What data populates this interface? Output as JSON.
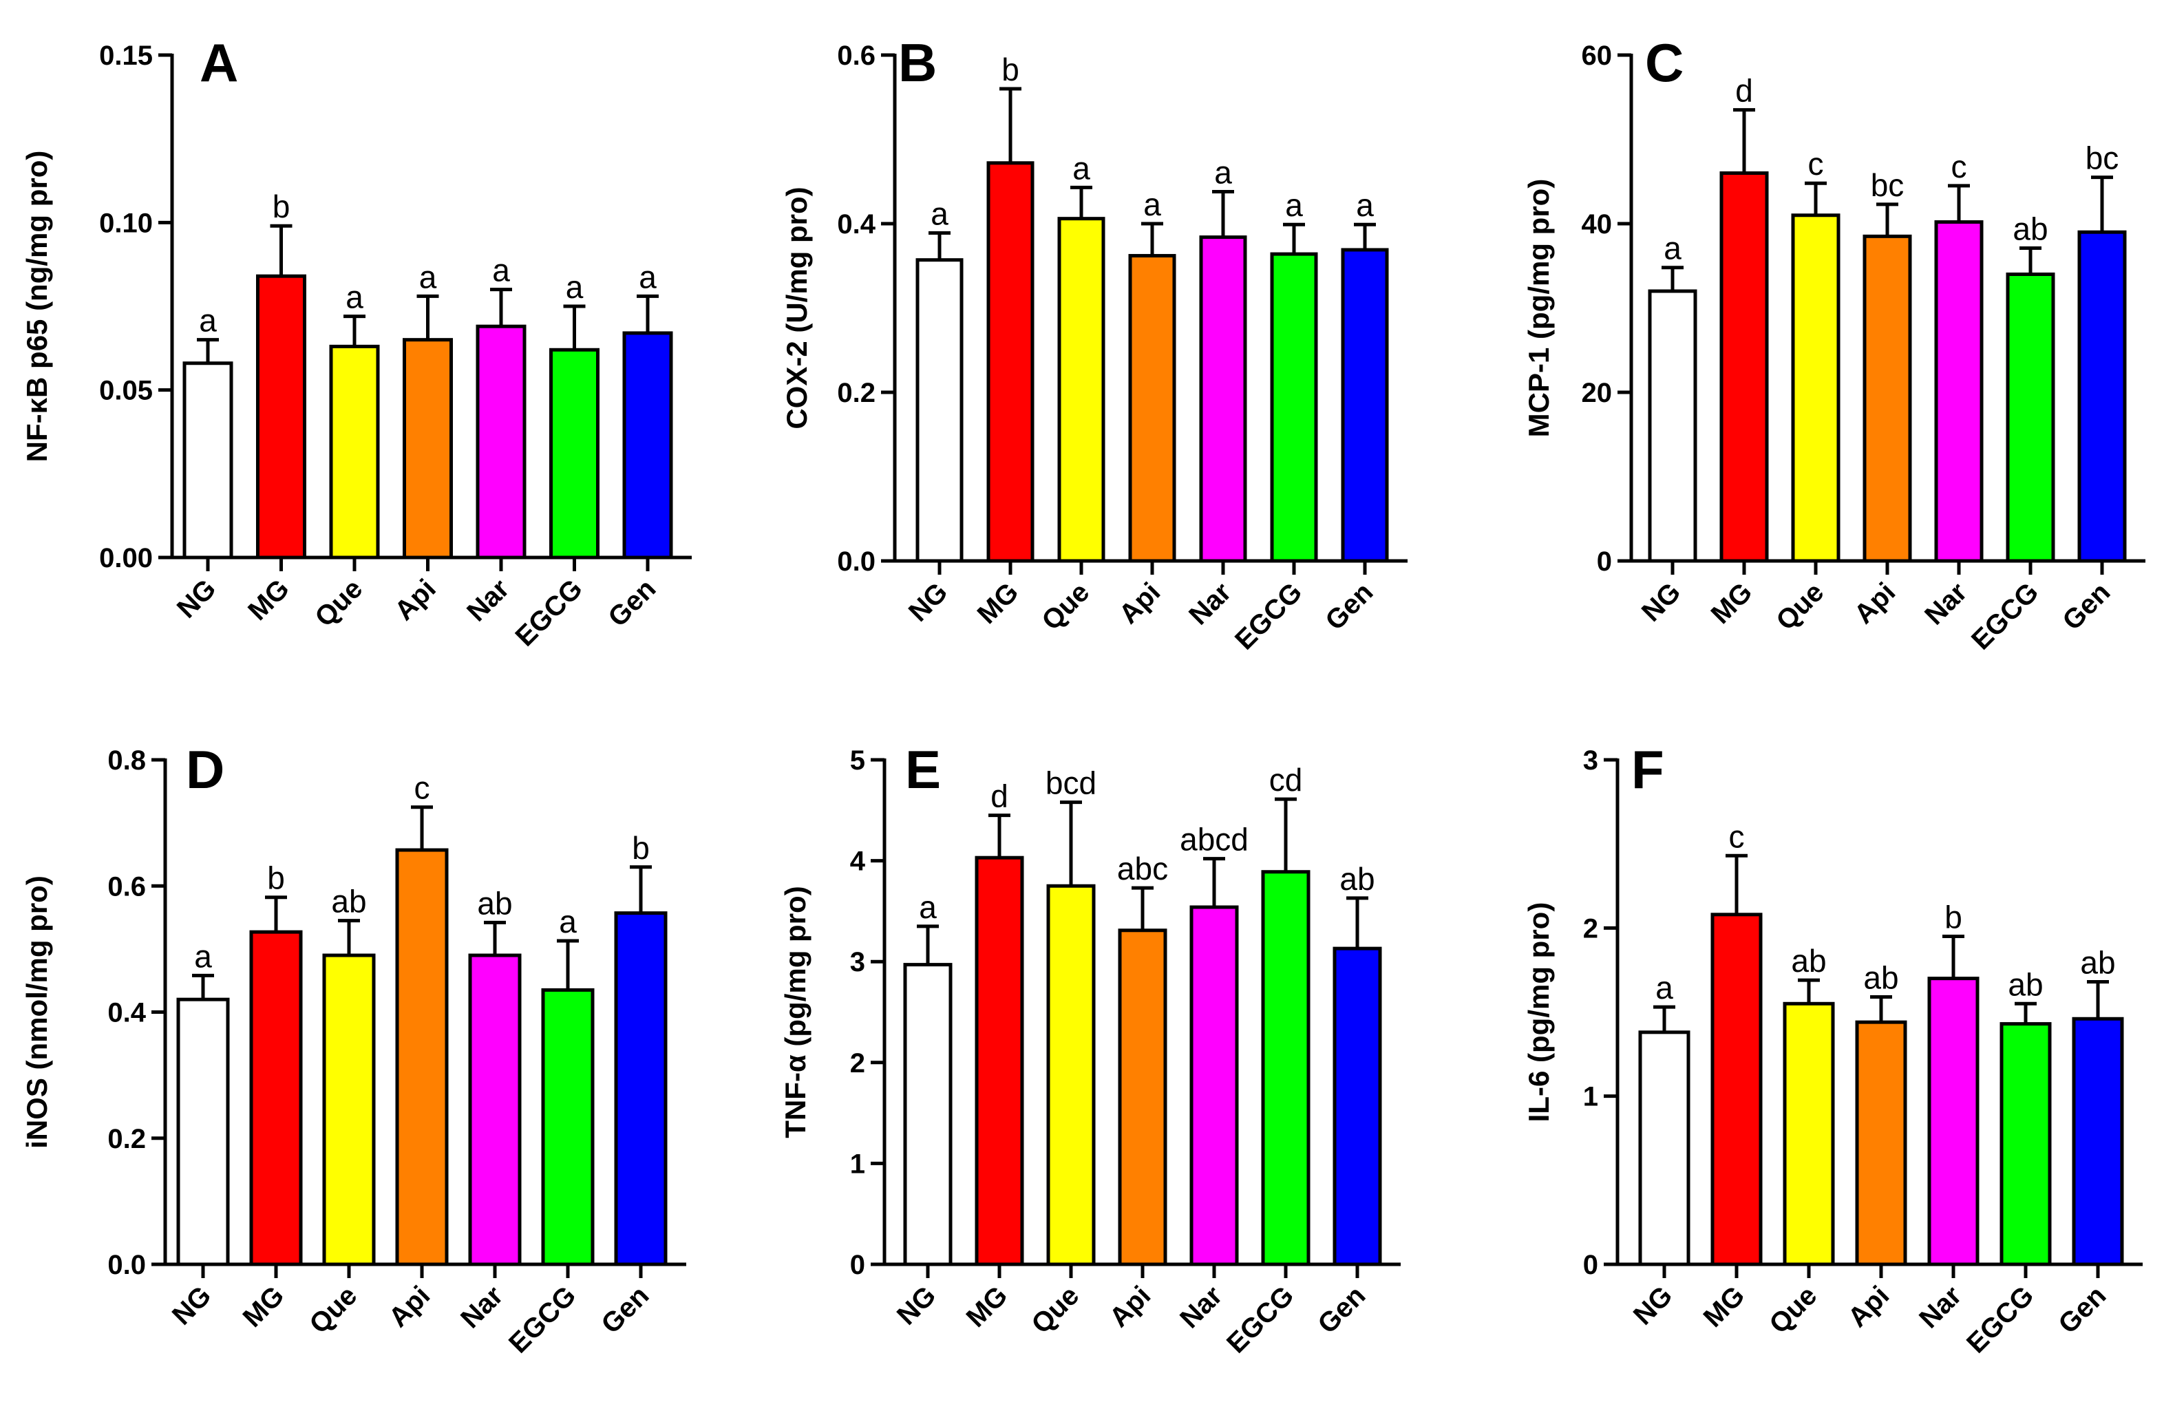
{
  "chart_data": [
    {
      "type": "bar",
      "panel": "A",
      "ylabel": "NF-κB p65 (ng/mg pro)",
      "ylim": [
        0,
        0.15
      ],
      "yticks": [
        0,
        0.05,
        0.1,
        0.15
      ],
      "ytick_labels": [
        "0.00",
        "0.05",
        "0.10",
        "0.15"
      ],
      "categories": [
        "NG",
        "MG",
        "Que",
        "Api",
        "Nar",
        "EGCG",
        "Gen"
      ],
      "values": [
        0.058,
        0.084,
        0.063,
        0.065,
        0.069,
        0.062,
        0.067
      ],
      "errors": [
        0.007,
        0.015,
        0.009,
        0.013,
        0.011,
        0.013,
        0.011
      ],
      "significance": [
        "a",
        "b",
        "a",
        "a",
        "a",
        "a",
        "a"
      ]
    },
    {
      "type": "bar",
      "panel": "B",
      "ylabel": "COX-2 (U/mg pro)",
      "ylim": [
        0,
        0.6
      ],
      "yticks": [
        0,
        0.2,
        0.4,
        0.6
      ],
      "ytick_labels": [
        "0.0",
        "0.2",
        "0.4",
        "0.6"
      ],
      "categories": [
        "NG",
        "MG",
        "Que",
        "Api",
        "Nar",
        "EGCG",
        "Gen"
      ],
      "values": [
        0.357,
        0.472,
        0.406,
        0.362,
        0.384,
        0.364,
        0.369
      ],
      "errors": [
        0.032,
        0.088,
        0.037,
        0.038,
        0.054,
        0.035,
        0.03
      ],
      "significance": [
        "a",
        "b",
        "a",
        "a",
        "a",
        "a",
        "a"
      ]
    },
    {
      "type": "bar",
      "panel": "C",
      "ylabel": "MCP-1 (pg/mg pro)",
      "ylim": [
        0,
        60
      ],
      "yticks": [
        0,
        20,
        40,
        60
      ],
      "ytick_labels": [
        "0",
        "20",
        "40",
        "60"
      ],
      "categories": [
        "NG",
        "MG",
        "Que",
        "Api",
        "Nar",
        "EGCG",
        "Gen"
      ],
      "values": [
        32,
        46,
        41,
        38.5,
        40.2,
        34,
        39
      ],
      "errors": [
        2.8,
        7.5,
        3.8,
        3.8,
        4.3,
        3.1,
        6.5
      ],
      "significance": [
        "a",
        "d",
        "c",
        "bc",
        "c",
        "ab",
        "bc"
      ]
    },
    {
      "type": "bar",
      "panel": "D",
      "ylabel": "iNOS (nmol/mg pro)",
      "ylim": [
        0,
        0.8
      ],
      "yticks": [
        0,
        0.2,
        0.4,
        0.6,
        0.8
      ],
      "ytick_labels": [
        "0.0",
        "0.2",
        "0.4",
        "0.6",
        "0.8"
      ],
      "categories": [
        "NG",
        "MG",
        "Que",
        "Api",
        "Nar",
        "EGCG",
        "Gen"
      ],
      "values": [
        0.42,
        0.527,
        0.49,
        0.657,
        0.49,
        0.435,
        0.557
      ],
      "errors": [
        0.038,
        0.055,
        0.055,
        0.068,
        0.052,
        0.078,
        0.073
      ],
      "significance": [
        "a",
        "b",
        "ab",
        "c",
        "ab",
        "a",
        "b"
      ]
    },
    {
      "type": "bar",
      "panel": "E",
      "ylabel": "TNF-α (pg/mg pro)",
      "ylim": [
        0,
        5
      ],
      "yticks": [
        0,
        1,
        2,
        3,
        4,
        5
      ],
      "ytick_labels": [
        "0",
        "1",
        "2",
        "3",
        "4",
        "5"
      ],
      "categories": [
        "NG",
        "MG",
        "Que",
        "Api",
        "Nar",
        "EGCG",
        "Gen"
      ],
      "values": [
        2.97,
        4.03,
        3.75,
        3.31,
        3.54,
        3.89,
        3.13
      ],
      "errors": [
        0.38,
        0.42,
        0.83,
        0.42,
        0.48,
        0.72,
        0.5
      ],
      "significance": [
        "a",
        "d",
        "bcd",
        "abc",
        "abcd",
        "cd",
        "ab"
      ]
    },
    {
      "type": "bar",
      "panel": "F",
      "ylabel": "IL-6 (pg/mg pro)",
      "ylim": [
        0,
        3
      ],
      "yticks": [
        0,
        1,
        2,
        3
      ],
      "ytick_labels": [
        "0",
        "1",
        "2",
        "3"
      ],
      "categories": [
        "NG",
        "MG",
        "Que",
        "Api",
        "Nar",
        "EGCG",
        "Gen"
      ],
      "values": [
        1.38,
        2.08,
        1.55,
        1.44,
        1.7,
        1.43,
        1.46
      ],
      "errors": [
        0.15,
        0.35,
        0.14,
        0.15,
        0.25,
        0.12,
        0.22
      ],
      "significance": [
        "a",
        "c",
        "ab",
        "ab",
        "b",
        "ab",
        "ab"
      ]
    }
  ],
  "colors": {
    "NG": "#ffffff",
    "MG": "#ff0000",
    "Que": "#ffff00",
    "Api": "#ff8000",
    "Nar": "#ff00ff",
    "EGCG": "#00ff00",
    "Gen": "#0000ff"
  }
}
